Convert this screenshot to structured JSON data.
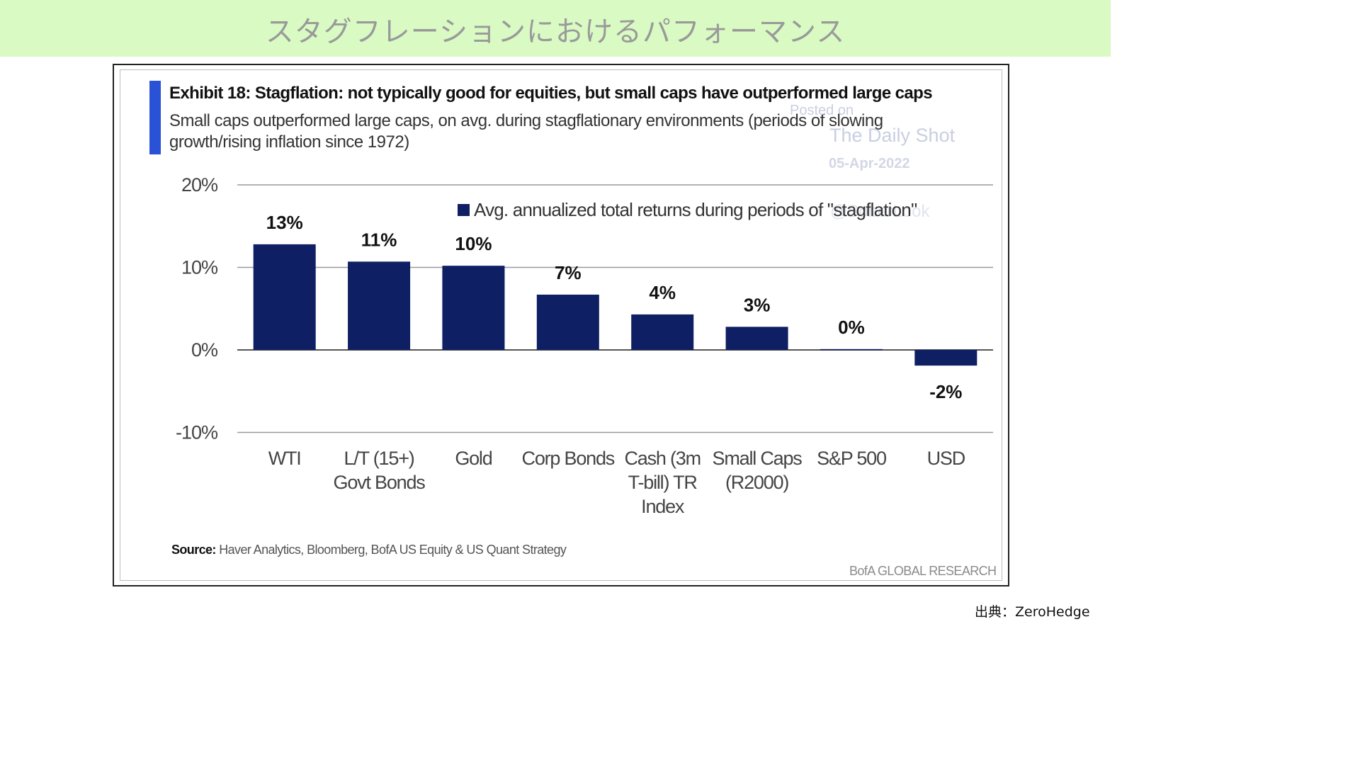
{
  "page": {
    "banner_title": "スタグフレーションにおけるパフォーマンス",
    "credit": "出典：ZeroHedge"
  },
  "exhibit": {
    "title": "Exhibit 18: Stagflation: not typically good for equities, but small caps have outperformed large caps",
    "subtitle": "Small caps outperformed large caps, on avg. during stagflationary environments (periods of slowing growth/rising inflation since 1972)",
    "source_label": "Source:",
    "source_text": "Haver Analytics, Bloomberg, BofA US Equity & US Quant Strategy",
    "brand": "BofA GLOBAL RESEARCH"
  },
  "watermark": {
    "line1": "Posted on",
    "line2": "The Daily Shot",
    "date": "05-Apr-2022",
    "handle": "@SoberLook"
  },
  "colors": {
    "bar": "#0f1f63",
    "accent": "#2a52d6",
    "banner": "#d9fbc3"
  },
  "chart_data": {
    "type": "bar",
    "categories": [
      [
        "WTI"
      ],
      [
        "L/T (15+)",
        "Govt Bonds"
      ],
      [
        "Gold"
      ],
      [
        "Corp Bonds"
      ],
      [
        "Cash (3m",
        "T-bill) TR",
        "Index"
      ],
      [
        "Small Caps",
        "(R2000)"
      ],
      [
        "S&P 500"
      ],
      [
        "USD"
      ]
    ],
    "series": [
      {
        "name": "Avg. annualized total returns during periods of \"stagflation\"",
        "values": [
          12.8,
          10.7,
          10.2,
          6.7,
          4.3,
          2.8,
          0.1,
          -1.9
        ],
        "labels": [
          "13%",
          "11%",
          "10%",
          "7%",
          "4%",
          "3%",
          "0%",
          "-2%"
        ]
      }
    ],
    "y_ticks": [
      20,
      10,
      0,
      -10
    ],
    "y_tick_labels": [
      "20%",
      "10%",
      "0%",
      "-10%"
    ],
    "ylim": [
      -10,
      20
    ],
    "grid": true,
    "legend_position": "top-right"
  }
}
